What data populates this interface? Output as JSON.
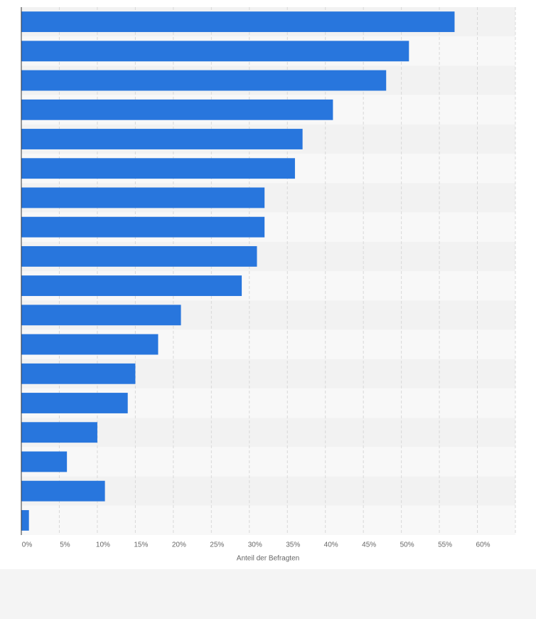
{
  "chart_data": {
    "type": "barh",
    "x_axis_label": "Anteil der Befragten",
    "categories": [
      null,
      null,
      null,
      null,
      null,
      null,
      null,
      null,
      null,
      null,
      null,
      null,
      null,
      null,
      null,
      null,
      null,
      null
    ],
    "values": [
      57,
      51,
      48,
      41,
      37,
      36,
      32,
      32,
      31,
      29,
      21,
      18,
      15,
      14,
      10,
      6,
      11,
      1
    ],
    "color": "#2876dd",
    "xlim": [
      0,
      65
    ],
    "xticks": [
      {
        "value": 0,
        "label": "0%"
      },
      {
        "value": 5,
        "label": "5%"
      },
      {
        "value": 10,
        "label": "10%"
      },
      {
        "value": 15,
        "label": "15%"
      },
      {
        "value": 20,
        "label": "20%"
      },
      {
        "value": 25,
        "label": "25%"
      },
      {
        "value": 30,
        "label": "30%"
      },
      {
        "value": 35,
        "label": "35%"
      },
      {
        "value": 40,
        "label": "40%"
      },
      {
        "value": 45,
        "label": "45%"
      },
      {
        "value": 50,
        "label": "50%"
      },
      {
        "value": 55,
        "label": "55%"
      },
      {
        "value": 60,
        "label": "60%"
      }
    ],
    "grid": true
  }
}
